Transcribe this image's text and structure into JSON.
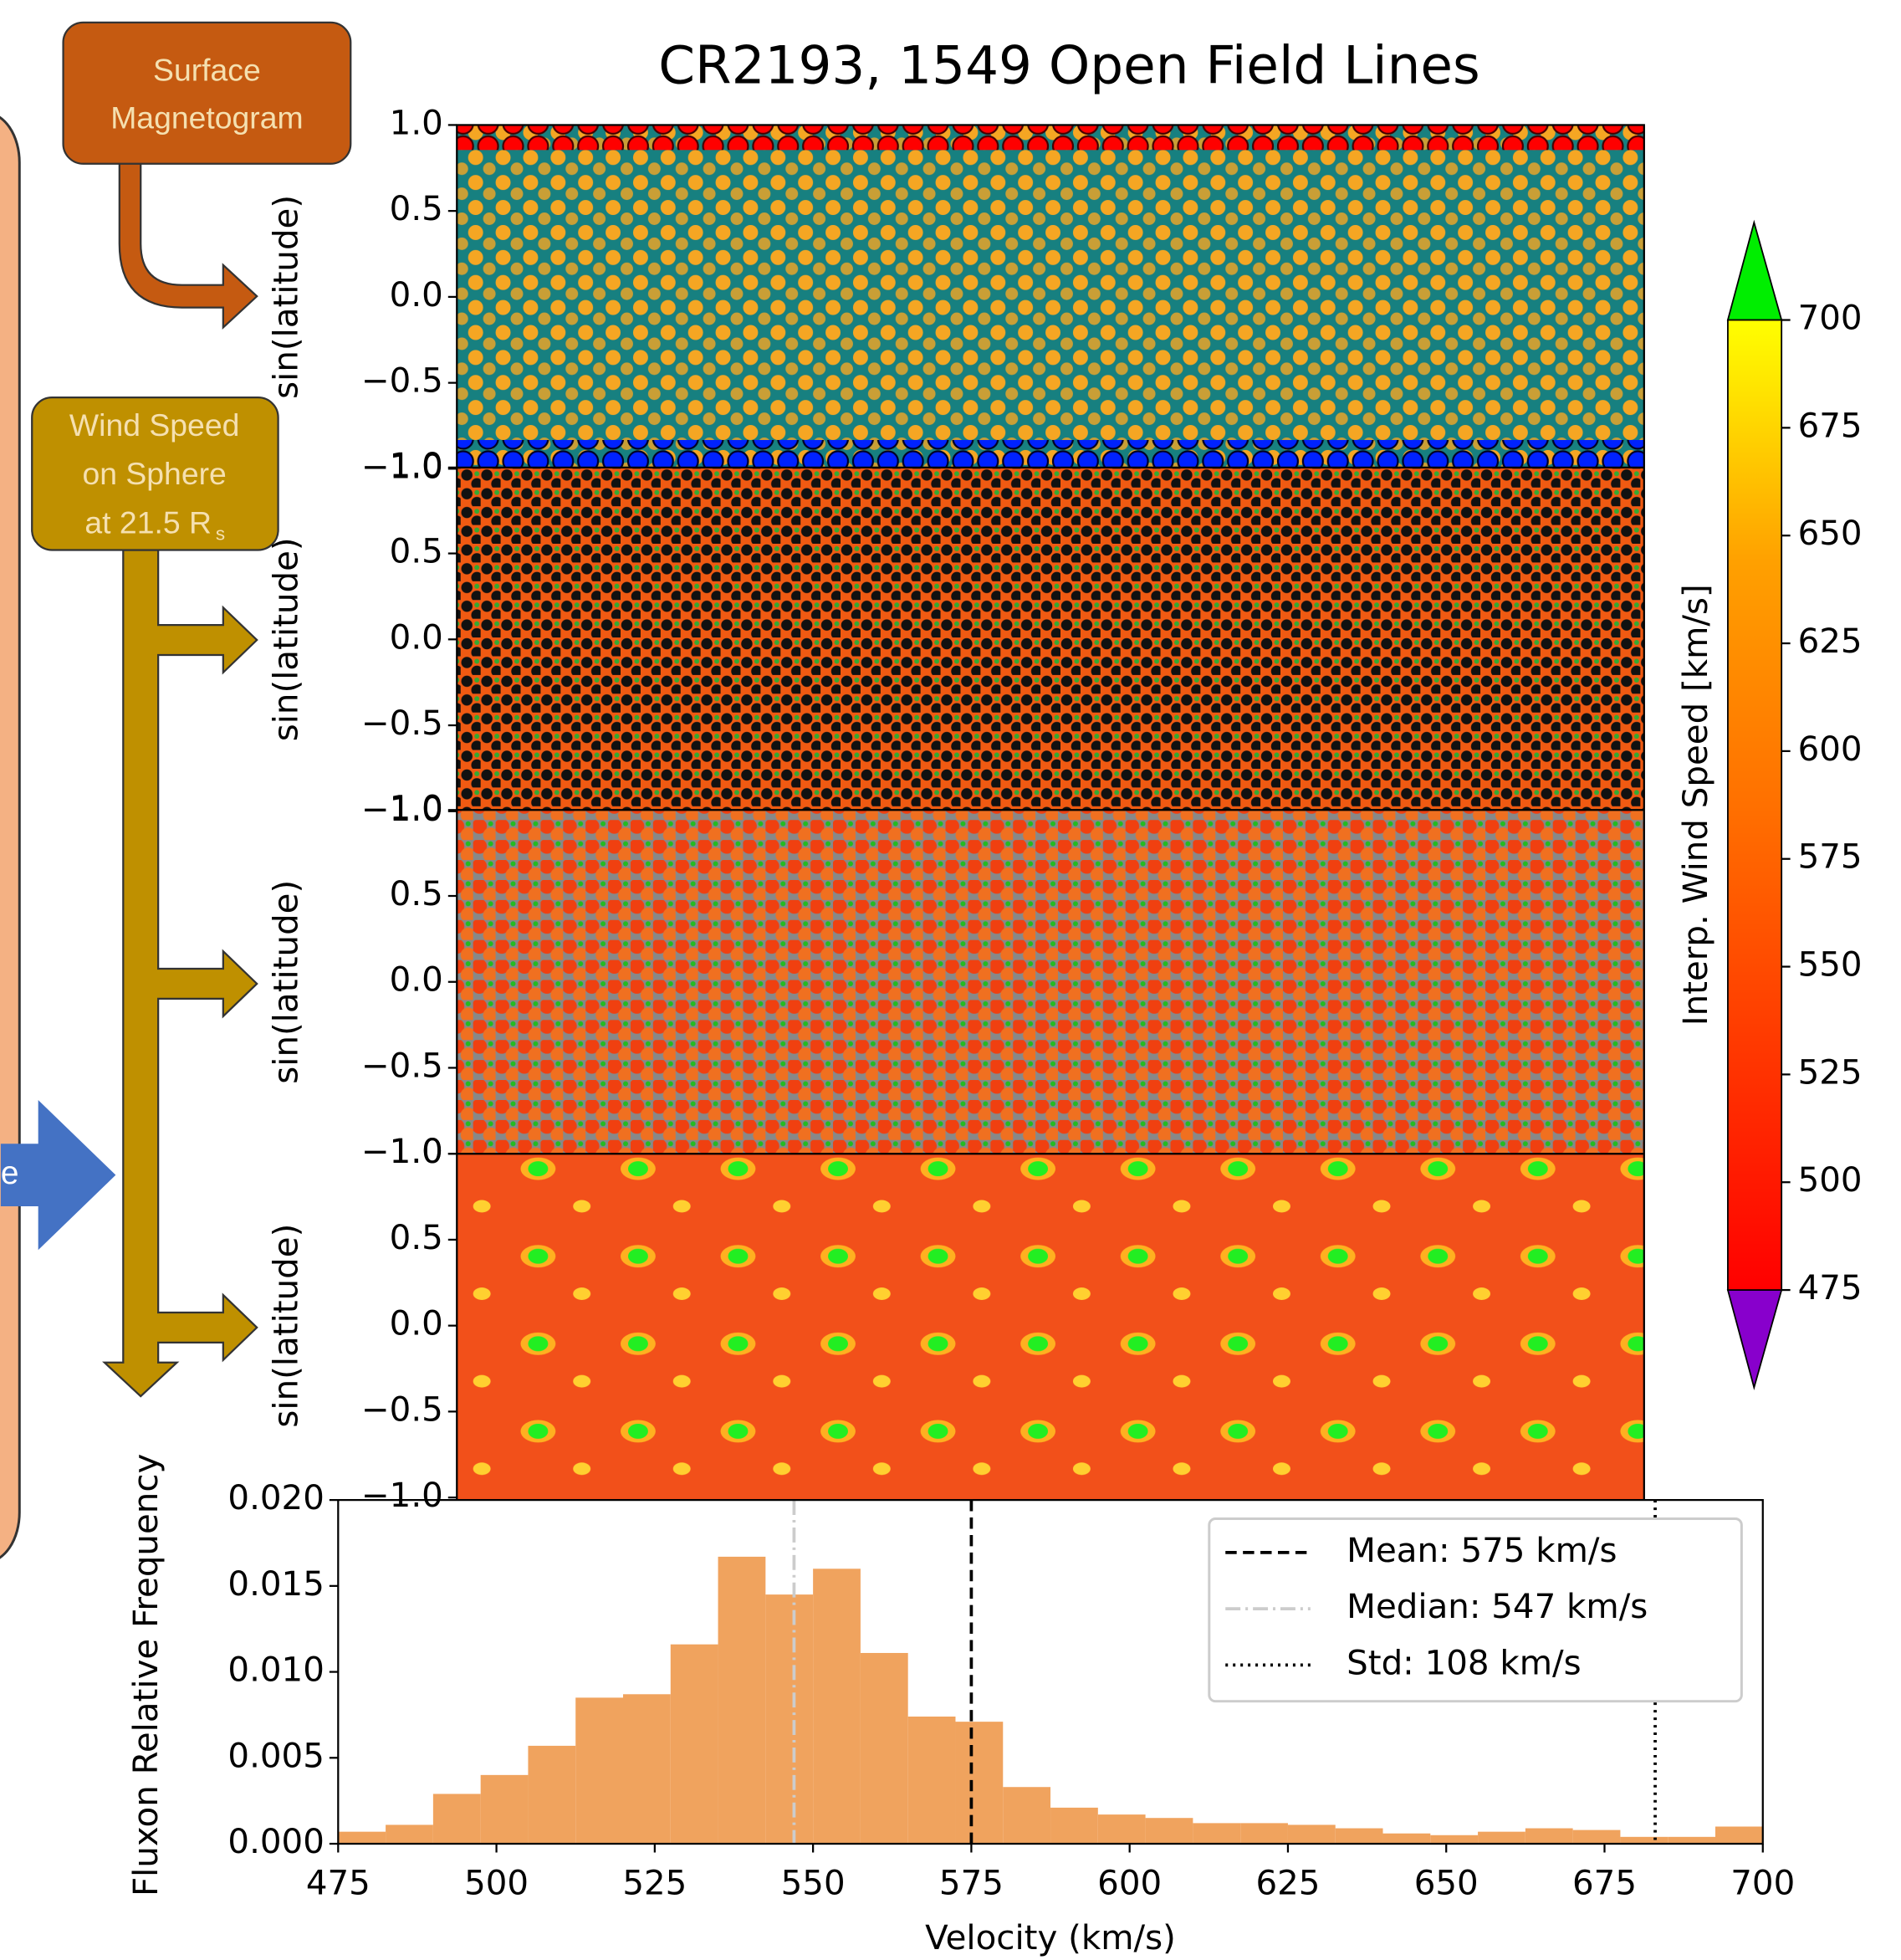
{
  "diagram": {
    "magnetogram_box": [
      "Surface",
      "Magnetogram"
    ],
    "wind_box": [
      "Wind Speed",
      "on Sphere",
      "at 21.5 R"
    ],
    "wind_box_subscript": "s",
    "left_arrow": "e"
  },
  "chart_data": [
    {
      "type": "maps",
      "title": "CR2193, 1549 Open Field Lines",
      "panels": [
        {
          "ylabel": "sin(latitude)"
        },
        {
          "ylabel": "sin(latitude)"
        },
        {
          "ylabel": "sin(latitude)"
        },
        {
          "ylabel": "sin(latitude)"
        }
      ],
      "ylim": [
        -1,
        1
      ],
      "yticks": [
        {
          "value": 1,
          "label": "1.0"
        },
        0.5,
        {
          "value": 0,
          "label": "0.0"
        },
        {
          "value": -0.5,
          "label": "−0.5"
        },
        {
          "value": -1,
          "label": "−1.0"
        }
      ],
      "colorbar": {
        "label": "Interp. Wind Speed [km/s]",
        "lim": [
          475,
          700
        ],
        "ticks": [
          475,
          500,
          525,
          550,
          575,
          600,
          625,
          650,
          675,
          700
        ]
      }
    },
    {
      "type": "histogram",
      "xlabel": "Velocity (km/s)",
      "ylabel": "Fluxon Relative Frequency",
      "color": "#f0a35e",
      "bins": [
        475,
        482.5,
        490,
        497.5,
        505,
        512.5,
        520,
        527.5,
        535,
        542.5,
        550,
        557.5,
        565,
        572.5,
        580,
        587.5,
        595,
        602.5,
        610,
        617.5,
        625,
        632.5,
        640,
        647.5,
        655,
        662.5,
        670,
        677.5,
        685,
        692.5,
        700
      ],
      "values": [
        0.0007,
        0.0011,
        0.0029,
        0.004,
        0.0057,
        0.0085,
        0.0087,
        0.0116,
        0.0167,
        0.0145,
        0.016,
        0.0111,
        0.0074,
        0.0071,
        0.0033,
        0.0021,
        0.0017,
        0.0015,
        0.0012,
        0.0012,
        0.0011,
        0.0009,
        0.0006,
        0.0005,
        0.0007,
        0.0009,
        0.0008,
        0.0004,
        0.0004,
        0.001
      ],
      "xlim": [
        475,
        700
      ],
      "xticks": [
        475,
        500,
        525,
        550,
        575,
        600,
        625,
        650,
        675,
        700
      ],
      "ylim": [
        0,
        0.02
      ],
      "yticks": [
        {
          "value": 0,
          "label": "0.000"
        },
        0.005,
        {
          "value": 0.01,
          "label": "0.010"
        },
        0.015,
        {
          "value": 0.02,
          "label": "0.020"
        }
      ],
      "lines": [
        {
          "label": "Mean: 575 km/s",
          "value": 575,
          "style": "dashed",
          "color": "#000000"
        },
        {
          "label": "Median: 547 km/s",
          "value": 547,
          "style": "dashdot",
          "color": "#cccccc"
        },
        {
          "label": "Std: 108 km/s",
          "value": 108,
          "style": "dotted",
          "color": "#000000"
        }
      ]
    }
  ]
}
